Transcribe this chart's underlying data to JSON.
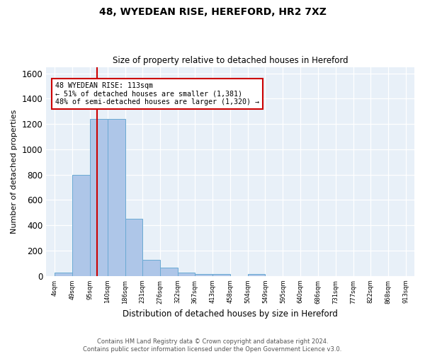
{
  "title_line1": "48, WYEDEAN RISE, HEREFORD, HR2 7XZ",
  "title_line2": "Size of property relative to detached houses in Hereford",
  "xlabel": "Distribution of detached houses by size in Hereford",
  "ylabel": "Number of detached properties",
  "bar_color": "#aec6e8",
  "bar_edge_color": "#6aaad4",
  "background_color": "#e8f0f8",
  "grid_color": "#ffffff",
  "bin_edges": [
    4,
    49,
    95,
    140,
    186,
    231,
    276,
    322,
    367,
    413,
    458,
    504,
    549,
    595,
    640,
    686,
    731,
    777,
    822,
    868,
    913
  ],
  "bar_heights": [
    25,
    800,
    1240,
    1240,
    450,
    130,
    65,
    25,
    15,
    15,
    0,
    15,
    0,
    0,
    0,
    0,
    0,
    0,
    0,
    0
  ],
  "red_line_x": 113,
  "annotation_text": "48 WYEDEAN RISE: 113sqm\n← 51% of detached houses are smaller (1,381)\n48% of semi-detached houses are larger (1,320) →",
  "annotation_box_color": "#cc0000",
  "ylim": [
    0,
    1650
  ],
  "footnote": "Contains HM Land Registry data © Crown copyright and database right 2024.\nContains public sector information licensed under the Open Government Licence v3.0.",
  "tick_labels": [
    "4sqm",
    "49sqm",
    "95sqm",
    "140sqm",
    "186sqm",
    "231sqm",
    "276sqm",
    "322sqm",
    "367sqm",
    "413sqm",
    "458sqm",
    "504sqm",
    "549sqm",
    "595sqm",
    "640sqm",
    "686sqm",
    "731sqm",
    "777sqm",
    "822sqm",
    "868sqm",
    "913sqm"
  ],
  "fig_bg": "#ffffff"
}
